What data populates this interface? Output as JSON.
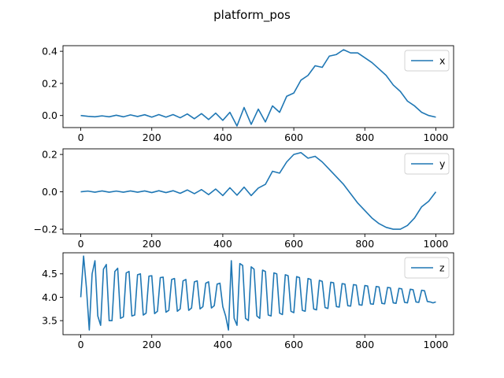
{
  "figure": {
    "title": "platform_pos",
    "line_color": "#1f77b4"
  },
  "chart_data": [
    {
      "type": "line",
      "series": [
        {
          "name": "x",
          "x": [
            0,
            20,
            40,
            60,
            80,
            100,
            120,
            140,
            160,
            180,
            200,
            220,
            240,
            260,
            280,
            300,
            320,
            340,
            360,
            380,
            400,
            420,
            440,
            460,
            480,
            500,
            520,
            540,
            560,
            580,
            600,
            620,
            640,
            660,
            680,
            700,
            720,
            740,
            760,
            780,
            800,
            820,
            840,
            860,
            880,
            900,
            920,
            940,
            960,
            980,
            1000
          ],
          "values": [
            0.0,
            -0.005,
            -0.008,
            -0.002,
            -0.008,
            0.002,
            -0.008,
            0.004,
            -0.006,
            0.005,
            -0.01,
            0.006,
            -0.01,
            0.006,
            -0.014,
            0.01,
            -0.02,
            0.012,
            -0.025,
            0.015,
            -0.03,
            0.02,
            -0.065,
            0.05,
            -0.055,
            0.04,
            -0.04,
            0.06,
            0.02,
            0.12,
            0.14,
            0.22,
            0.25,
            0.31,
            0.3,
            0.37,
            0.38,
            0.41,
            0.39,
            0.39,
            0.36,
            0.33,
            0.29,
            0.25,
            0.19,
            0.15,
            0.09,
            0.06,
            0.02,
            0.0,
            -0.01
          ]
        }
      ],
      "xlim": [
        -50,
        1050
      ],
      "ylim": [
        -0.075,
        0.435
      ],
      "xticks": [
        0,
        200,
        400,
        600,
        800,
        1000
      ],
      "yticks": [
        0.0,
        0.2,
        0.4
      ],
      "ytick_labels": [
        "0.0",
        "0.2",
        "0.4"
      ],
      "legend": "upper-right"
    },
    {
      "type": "line",
      "series": [
        {
          "name": "y",
          "x": [
            0,
            20,
            40,
            60,
            80,
            100,
            120,
            140,
            160,
            180,
            200,
            220,
            240,
            260,
            280,
            300,
            320,
            340,
            360,
            380,
            400,
            420,
            440,
            460,
            480,
            500,
            520,
            540,
            560,
            580,
            600,
            620,
            640,
            660,
            680,
            700,
            720,
            740,
            760,
            780,
            800,
            820,
            840,
            860,
            880,
            900,
            920,
            940,
            960,
            980,
            1000
          ],
          "values": [
            0.0,
            0.004,
            -0.002,
            0.005,
            -0.002,
            0.004,
            -0.002,
            0.005,
            -0.002,
            0.005,
            -0.004,
            0.006,
            -0.004,
            0.006,
            -0.008,
            0.01,
            -0.01,
            0.012,
            -0.015,
            0.015,
            -0.02,
            0.022,
            -0.018,
            0.025,
            -0.02,
            0.02,
            0.04,
            0.11,
            0.1,
            0.16,
            0.2,
            0.21,
            0.18,
            0.19,
            0.16,
            0.12,
            0.08,
            0.04,
            -0.01,
            -0.06,
            -0.1,
            -0.14,
            -0.17,
            -0.19,
            -0.2,
            -0.2,
            -0.18,
            -0.14,
            -0.08,
            -0.05,
            0.0
          ]
        }
      ],
      "xlim": [
        -50,
        1050
      ],
      "ylim": [
        -0.225,
        0.23
      ],
      "xticks": [
        0,
        200,
        400,
        600,
        800,
        1000
      ],
      "yticks": [
        -0.2,
        0.0,
        0.2
      ],
      "ytick_labels": [
        "−0.2",
        "0.0",
        "0.2"
      ],
      "legend": "upper-right"
    },
    {
      "type": "line",
      "series": [
        {
          "name": "z",
          "x": [
            0,
            8,
            16,
            24,
            32,
            40,
            48,
            56,
            64,
            72,
            80,
            88,
            96,
            104,
            112,
            120,
            128,
            136,
            144,
            152,
            160,
            168,
            176,
            184,
            192,
            200,
            208,
            216,
            224,
            232,
            240,
            248,
            256,
            264,
            272,
            280,
            288,
            296,
            304,
            312,
            320,
            328,
            336,
            344,
            352,
            360,
            368,
            376,
            384,
            392,
            400,
            408,
            416,
            424,
            432,
            440,
            448,
            456,
            464,
            472,
            480,
            488,
            496,
            504,
            512,
            520,
            528,
            536,
            544,
            552,
            560,
            568,
            576,
            584,
            592,
            600,
            608,
            616,
            624,
            632,
            640,
            648,
            656,
            664,
            672,
            680,
            688,
            696,
            704,
            712,
            720,
            728,
            736,
            744,
            752,
            760,
            768,
            776,
            784,
            792,
            800,
            808,
            816,
            824,
            832,
            840,
            848,
            856,
            864,
            872,
            880,
            888,
            896,
            904,
            912,
            920,
            928,
            936,
            944,
            952,
            960,
            968,
            976,
            984,
            992,
            1000
          ],
          "values": [
            4.0,
            4.88,
            4.2,
            3.3,
            4.5,
            4.78,
            3.6,
            3.4,
            4.6,
            4.7,
            3.5,
            3.5,
            4.55,
            4.62,
            3.55,
            3.58,
            4.52,
            4.55,
            3.6,
            3.62,
            4.48,
            4.5,
            3.62,
            3.66,
            4.45,
            4.46,
            3.65,
            3.7,
            4.42,
            4.43,
            3.68,
            3.72,
            4.38,
            4.4,
            3.7,
            3.75,
            4.35,
            4.38,
            3.72,
            3.77,
            4.33,
            4.35,
            3.75,
            3.8,
            4.3,
            4.33,
            3.77,
            3.82,
            4.28,
            4.3,
            3.8,
            3.6,
            3.3,
            4.78,
            3.55,
            3.4,
            4.72,
            4.68,
            3.55,
            3.5,
            4.65,
            4.6,
            3.6,
            3.55,
            4.58,
            4.55,
            3.62,
            3.6,
            4.52,
            4.5,
            3.66,
            3.63,
            4.48,
            4.46,
            3.7,
            3.67,
            4.44,
            4.42,
            3.72,
            3.7,
            4.4,
            4.38,
            3.75,
            3.73,
            4.36,
            4.34,
            3.78,
            3.76,
            4.32,
            4.31,
            3.8,
            3.79,
            4.29,
            4.28,
            3.82,
            3.81,
            4.27,
            4.26,
            3.84,
            3.83,
            4.25,
            4.24,
            3.86,
            3.85,
            4.23,
            4.22,
            3.87,
            3.86,
            4.21,
            4.2,
            3.88,
            3.87,
            4.19,
            4.18,
            3.89,
            3.88,
            4.17,
            4.16,
            3.9,
            3.89,
            4.15,
            4.14,
            3.91,
            3.9,
            3.88,
            3.9
          ]
        }
      ],
      "xlim": [
        -50,
        1050
      ],
      "ylim": [
        3.2,
        4.95
      ],
      "xticks": [
        0,
        200,
        400,
        600,
        800,
        1000
      ],
      "yticks": [
        3.5,
        4.0,
        4.5
      ],
      "ytick_labels": [
        "3.5",
        "4.0",
        "4.5"
      ],
      "legend": "upper-right"
    }
  ]
}
